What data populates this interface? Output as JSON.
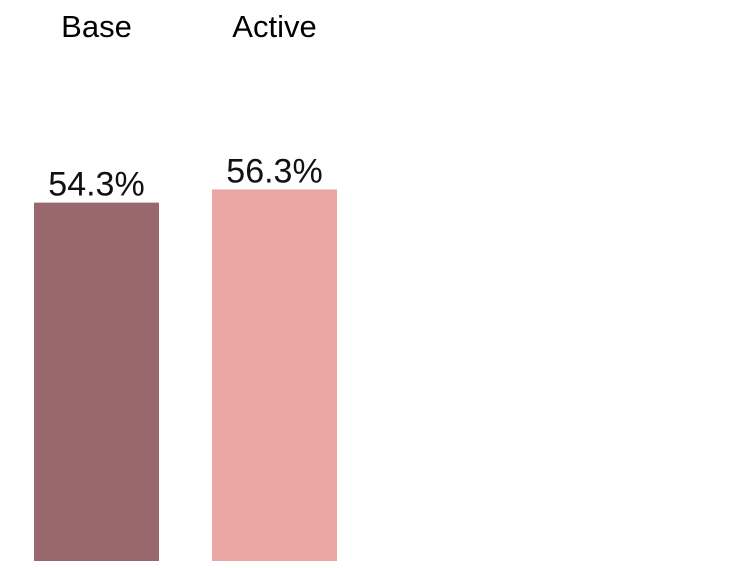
{
  "chart_data": {
    "type": "bar",
    "categories": [
      "Base",
      "Active"
    ],
    "values": [
      54.3,
      56.3
    ],
    "value_labels": [
      "54.3%",
      "56.3%"
    ],
    "colors": [
      "#98686d",
      "#eaa6a3"
    ],
    "unit": "%",
    "title": "",
    "xlabel": "",
    "ylabel": "",
    "ylim": [
      0,
      85
    ],
    "grid": false,
    "legend": "none"
  }
}
